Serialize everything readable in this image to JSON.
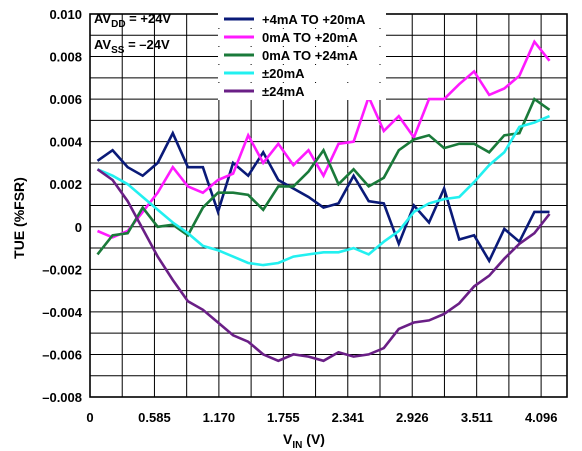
{
  "chart_data": {
    "type": "line",
    "xlabel": {
      "main": "V",
      "sub": "IN",
      "unit": " (V)"
    },
    "ylabel": "TUE (%FSR)",
    "xlim": [
      0,
      4.33
    ],
    "ylim": [
      -0.008,
      0.01
    ],
    "x_tick_labels": [
      "0",
      "0.585",
      "1.170",
      "1.755",
      "2.341",
      "2.926",
      "3.511",
      "4.096"
    ],
    "x_tick_values": [
      0,
      0.585,
      1.17,
      1.755,
      2.341,
      2.926,
      3.511,
      4.096
    ],
    "y_tick_labels": [
      "0.010",
      "0.008",
      "0.006",
      "0.004",
      "0.002",
      "0",
      "–0.002",
      "–0.004",
      "–0.006",
      "–0.008"
    ],
    "y_tick_values": [
      0.01,
      0.008,
      0.006,
      0.004,
      0.002,
      0,
      -0.002,
      -0.004,
      -0.006,
      -0.008
    ],
    "grid": true,
    "annotation": {
      "line1": {
        "main": "AV",
        "sub": "DD",
        "rest": " = +24V"
      },
      "line2": {
        "main": "AV",
        "sub": "SS",
        "rest": " = –24V"
      }
    },
    "legend_position": "top",
    "x": [
      0.068,
      0.205,
      0.342,
      0.478,
      0.615,
      0.752,
      0.889,
      1.025,
      1.162,
      1.299,
      1.436,
      1.572,
      1.709,
      1.846,
      1.983,
      2.12,
      2.256,
      2.393,
      2.53,
      2.667,
      2.803,
      2.94,
      3.077,
      3.214,
      3.351,
      3.487,
      3.624,
      3.761,
      3.898,
      4.034,
      4.171
    ],
    "series": [
      {
        "name": "+4mA TO +20mA",
        "color": "#0a1a78",
        "values": [
          0.0031,
          0.0036,
          0.0028,
          0.0024,
          0.003,
          0.0044,
          0.0028,
          0.0028,
          0.0007,
          0.003,
          0.0024,
          0.0035,
          0.0022,
          0.0018,
          0.0014,
          0.0009,
          0.0011,
          0.0024,
          0.0012,
          0.0011,
          -0.0008,
          0.001,
          0.0002,
          0.0018,
          -0.0006,
          -0.0004,
          -0.0016,
          -0.0001,
          -0.0007,
          0.0007,
          0.0007
        ]
      },
      {
        "name": "0mA TO +20mA",
        "color": "#ff1aff",
        "values": [
          -0.0002,
          -0.0005,
          -0.0002,
          0.0007,
          0.0016,
          0.0028,
          0.0019,
          0.0016,
          0.0022,
          0.0025,
          0.0043,
          0.003,
          0.0039,
          0.0029,
          0.0036,
          0.0024,
          0.0039,
          0.004,
          0.0061,
          0.0045,
          0.0052,
          0.0042,
          0.006,
          0.006,
          0.0067,
          0.0073,
          0.0062,
          0.0065,
          0.0071,
          0.0087,
          0.0078
        ]
      },
      {
        "name": "0mA TO +24mA",
        "color": "#1a7a3a",
        "values": [
          -0.0013,
          -0.0004,
          -0.0003,
          0.0009,
          0.0,
          0.0001,
          -0.0004,
          0.0009,
          0.0016,
          0.0016,
          0.0015,
          0.0008,
          0.0019,
          0.0019,
          0.0026,
          0.0036,
          0.002,
          0.0027,
          0.0019,
          0.0023,
          0.0036,
          0.0041,
          0.0043,
          0.0037,
          0.0039,
          0.0039,
          0.0035,
          0.0043,
          0.0044,
          0.006,
          0.0055
        ]
      },
      {
        "name": "±20mA",
        "color": "#22f0f0",
        "values": [
          0.0027,
          0.0024,
          0.002,
          0.0014,
          0.0008,
          0.0002,
          -0.0003,
          -0.0009,
          -0.0011,
          -0.0014,
          -0.0017,
          -0.0018,
          -0.0017,
          -0.0014,
          -0.0013,
          -0.0012,
          -0.0012,
          -0.001,
          -0.0013,
          -0.0007,
          -0.0002,
          0.0007,
          0.0011,
          0.0013,
          0.0014,
          0.0021,
          0.0029,
          0.0035,
          0.0047,
          0.0049,
          0.0052
        ]
      },
      {
        "name": "±24mA",
        "color": "#6a1f86",
        "values": [
          0.0027,
          0.0022,
          0.0012,
          -0.0001,
          -0.0014,
          -0.0025,
          -0.0035,
          -0.0039,
          -0.0045,
          -0.0051,
          -0.0054,
          -0.006,
          -0.0063,
          -0.006,
          -0.0061,
          -0.0063,
          -0.0059,
          -0.0061,
          -0.006,
          -0.0057,
          -0.0048,
          -0.0045,
          -0.0044,
          -0.0041,
          -0.0036,
          -0.0028,
          -0.0023,
          -0.0015,
          -0.0008,
          -0.0003,
          0.0006
        ]
      }
    ]
  }
}
